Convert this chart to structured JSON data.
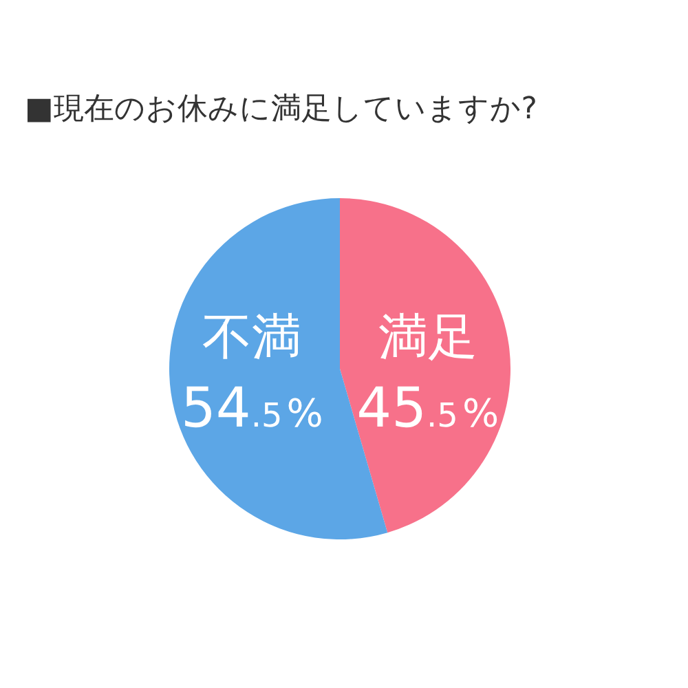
{
  "chart_data": {
    "type": "pie",
    "title": "■現在のお休みに満足していますか?",
    "categories": [
      "満足",
      "不満"
    ],
    "values": [
      45.5,
      54.5
    ],
    "colors": [
      "#f7718a",
      "#5ca6e6"
    ],
    "value_labels": [
      "45.5%",
      "54.5%"
    ],
    "data_labels": true
  }
}
